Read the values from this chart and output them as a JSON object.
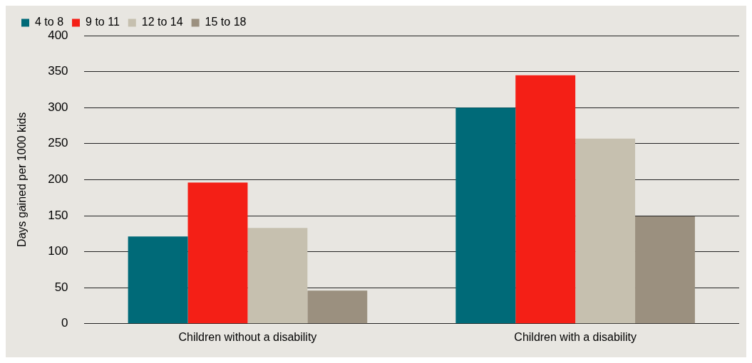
{
  "chart_data": {
    "type": "bar",
    "ylabel": "Days gained per 1000 kids",
    "categories": [
      "Children without a disability",
      "Children with a disability"
    ],
    "series": [
      {
        "name": "4 to 8",
        "color": "#006a78",
        "values": [
          121,
          300
        ]
      },
      {
        "name": "9 to 11",
        "color": "#f41f16",
        "values": [
          196,
          345
        ]
      },
      {
        "name": "12 to 14",
        "color": "#c6c0af",
        "values": [
          133,
          257
        ]
      },
      {
        "name": "15 to 18",
        "color": "#9b907f",
        "values": [
          46,
          149
        ]
      }
    ],
    "ylim": [
      0,
      400
    ],
    "yticks": [
      0,
      50,
      100,
      150,
      200,
      250,
      300,
      350,
      400
    ],
    "grid": "y",
    "legend": "top left"
  }
}
